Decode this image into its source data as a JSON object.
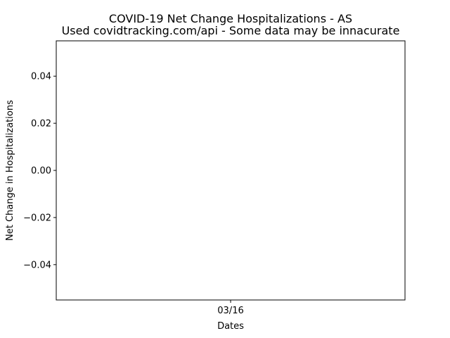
{
  "chart_data": {
    "type": "bar",
    "title": "COVID-19 Net Change Hospitalizations - AS",
    "subtitle": "Used covidtracking.com/api - Some data may be innacurate",
    "xlabel": "Dates",
    "ylabel": "Net Change in Hospitalizations",
    "categories": [
      "03/16"
    ],
    "values": [
      0
    ],
    "ylim": [
      -0.055,
      0.055
    ],
    "yticks": [
      -0.04,
      -0.02,
      0.0,
      0.02,
      0.04
    ],
    "ytick_labels": [
      "−0.04",
      "−0.02",
      "0.00",
      "0.02",
      "0.04"
    ],
    "xlim": [
      -0.055,
      0.055
    ],
    "xticks": [
      0
    ],
    "xtick_labels": [
      "03/16"
    ],
    "grid": false,
    "colors": {
      "axes": "#000000",
      "background": "#ffffff"
    }
  }
}
